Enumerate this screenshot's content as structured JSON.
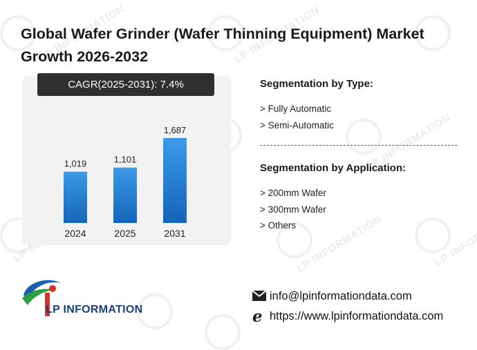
{
  "title": "Global Wafer Grinder (Wafer Thinning Equipment) Market Growth 2026-2032",
  "cagr_label": "CAGR(2025-2031):  7.4%",
  "chart_data": {
    "type": "bar",
    "categories": [
      "2024",
      "2025",
      "2031"
    ],
    "values": [
      1019,
      1101,
      1687
    ],
    "value_labels": [
      "1,019",
      "1,101",
      "1,687"
    ],
    "title": "",
    "xlabel": "",
    "ylabel": "",
    "ylim": [
      0,
      1900
    ],
    "grid": false,
    "bar_color_top": "#3d9ae8",
    "bar_color_bottom": "#1464b8"
  },
  "segmentation": {
    "type_title": "Segmentation by Type:",
    "type_items": [
      "> Fully Automatic",
      "> Semi-Automatic"
    ],
    "application_title": "Segmentation by Application:",
    "application_items": [
      "> 200mm Wafer",
      "> 300mm Wafer",
      "> Others"
    ]
  },
  "brand": {
    "logo_text": "LP INFORMATION",
    "watermark_text": "LP INFORMATION",
    "logo_colors": {
      "blue": "#1a5fb4",
      "green": "#2e9e44",
      "red": "#d6312b"
    }
  },
  "contact": {
    "email": "info@lpinformationdata.com",
    "website": "https://www.lpinformationdata.com",
    "email_icon": "envelope-icon",
    "web_icon": "browser-e-icon"
  }
}
